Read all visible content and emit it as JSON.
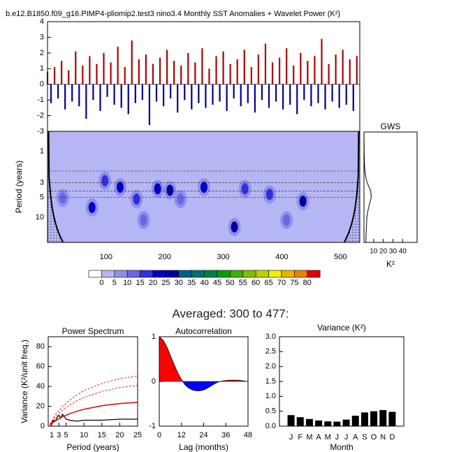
{
  "subheading": "Averaged: 300 to 477:",
  "chart_data": [
    {
      "type": "bar",
      "title": "b.e12.B1850.f09_g16.PIMP4-pliomip2.test3 nino3.4 Monthly SST Anomalies + Wavelet Power (K²)",
      "x": [
        0,
        6,
        12,
        18,
        24,
        30,
        36,
        42,
        48,
        54,
        60,
        66,
        72,
        78,
        84,
        90,
        96,
        102,
        108,
        114,
        120,
        126,
        132,
        138,
        144,
        150,
        156,
        162,
        168,
        174,
        180,
        186,
        192,
        198,
        204,
        210,
        216,
        222,
        228,
        234,
        240,
        246,
        252,
        258,
        264,
        270,
        276,
        282,
        288,
        294,
        300,
        306,
        312,
        318,
        324,
        330,
        336,
        342,
        348,
        354,
        360,
        366,
        372,
        378,
        384,
        390,
        396,
        402,
        408,
        414,
        420,
        426,
        432,
        438,
        444,
        450,
        456,
        462,
        468,
        474,
        480,
        486,
        492,
        498,
        504,
        510,
        516,
        522,
        528
      ],
      "values": [
        0.8,
        -1.2,
        1.1,
        -0.9,
        1.5,
        -1.6,
        0.9,
        -1.1,
        2.1,
        -1.4,
        1.2,
        -2.2,
        1.8,
        -1.0,
        1.3,
        -1.7,
        2.0,
        -0.8,
        1.4,
        -1.3,
        2.4,
        -1.5,
        1.1,
        -1.9,
        2.8,
        -1.2,
        1.6,
        -1.0,
        1.9,
        -2.6,
        1.3,
        -1.1,
        1.7,
        -1.4,
        2.2,
        -0.9,
        1.5,
        -1.8,
        1.2,
        -1.0,
        2.0,
        -1.6,
        1.4,
        -1.2,
        2.3,
        -1.5,
        1.0,
        -1.3,
        1.8,
        -1.1,
        2.1,
        -1.7,
        1.3,
        -0.9,
        1.6,
        -1.4,
        2.2,
        -1.2,
        1.1,
        -1.8,
        1.9,
        -1.0,
        2.6,
        -1.5,
        1.4,
        -1.1,
        1.7,
        -1.6,
        2.3,
        -1.3,
        1.2,
        -1.9,
        2.0,
        -1.0,
        1.5,
        -1.4,
        1.8,
        -1.2,
        2.9,
        -1.6,
        1.3,
        -1.1,
        1.9,
        -1.5,
        2.2,
        -1.3,
        1.6,
        -1.7,
        1.8
      ],
      "pos_color": "#b00000",
      "neg_color": "#00008b",
      "xlim": [
        0,
        533
      ],
      "ylim": [
        -3,
        4
      ],
      "yticks": [
        -3,
        -2,
        -1,
        0,
        1,
        2,
        3,
        4
      ]
    },
    {
      "type": "contour",
      "ylabel": "Period (years)",
      "xlim": [
        0,
        533
      ],
      "xticks": [
        100,
        200,
        300,
        400,
        500
      ],
      "ylim": [
        0.5,
        24
      ],
      "ylog": true,
      "yreversed": true,
      "yticks": [
        1,
        3,
        5,
        10
      ],
      "dashed_periods": [
        2,
        3,
        4,
        5
      ],
      "hotspots": [
        {
          "x": 26,
          "period": 5.1,
          "power": 10
        },
        {
          "x": 76,
          "period": 7.1,
          "power": 20
        },
        {
          "x": 98,
          "period": 2.8,
          "power": 15
        },
        {
          "x": 124,
          "period": 3.5,
          "power": 20
        },
        {
          "x": 152,
          "period": 5.3,
          "power": 15
        },
        {
          "x": 188,
          "period": 3.7,
          "power": 20
        },
        {
          "x": 209,
          "period": 3.9,
          "power": 25
        },
        {
          "x": 227,
          "period": 5.3,
          "power": 10
        },
        {
          "x": 267,
          "period": 3.5,
          "power": 20
        },
        {
          "x": 319,
          "period": 14,
          "power": 25
        },
        {
          "x": 337,
          "period": 3.7,
          "power": 15
        },
        {
          "x": 379,
          "period": 4.5,
          "power": 15
        },
        {
          "x": 436,
          "period": 5.7,
          "power": 25
        },
        {
          "x": 164,
          "period": 11,
          "power": 10
        },
        {
          "x": 408,
          "period": 11,
          "power": 10
        }
      ],
      "levels": [
        0,
        5,
        10,
        15,
        20,
        25,
        30,
        35,
        40,
        45,
        50,
        55,
        60,
        65,
        70,
        75,
        80
      ],
      "level_colors": [
        "#ffffff",
        "#b6b6f4",
        "#9090ec",
        "#6868e4",
        "#3030dc",
        "#0000c8",
        "#0000a0",
        "#006080",
        "#007070",
        "#008040",
        "#00a000",
        "#40b000",
        "#80c000",
        "#c0d000",
        "#f0f000",
        "#f0b000",
        "#f08000",
        "#e00000"
      ]
    },
    {
      "type": "line",
      "title": "GWS",
      "xlabel": "K²",
      "y": [
        0.5,
        1,
        1.5,
        2,
        2.5,
        3,
        3.5,
        4,
        5,
        6,
        8,
        10,
        14,
        20,
        24
      ],
      "values": [
        0,
        0.2,
        0.5,
        1,
        2,
        3.5,
        5.5,
        7,
        7.5,
        6,
        4,
        3,
        2.5,
        2,
        2
      ],
      "color": "#000000",
      "xlim": [
        0,
        55
      ],
      "xticks": [
        10,
        20,
        30,
        40
      ],
      "ylim": [
        0.5,
        24
      ],
      "ylog": true,
      "yreversed": true
    },
    {
      "type": "line",
      "title": "Power Spectrum",
      "xlabel": "Period (years)",
      "ylabel": "Variance (K²/unit freq.)",
      "x": [
        0.5,
        1,
        1.5,
        2,
        2.5,
        3,
        3.5,
        4,
        5,
        6,
        8,
        10,
        15,
        20,
        25
      ],
      "series": [
        {
          "color": "#000000",
          "values": [
            1,
            3,
            6,
            5,
            9,
            11,
            8,
            12,
            7,
            6,
            5,
            6,
            6,
            7,
            7
          ]
        },
        {
          "color": "#e00000",
          "values": [
            1,
            2.5,
            4,
            5.5,
            6.5,
            7.5,
            8.5,
            9.5,
            11,
            12.5,
            15,
            17,
            20.5,
            22.8,
            24
          ]
        },
        {
          "color": "#e00000",
          "dash": true,
          "values": [
            1.7,
            4.2,
            6.8,
            9.3,
            11,
            12.7,
            14.4,
            16,
            18.7,
            21,
            25.5,
            29,
            35,
            38.8,
            41
          ]
        },
        {
          "color": "#e00000",
          "dash": true,
          "values": [
            2.1,
            5.2,
            8.4,
            11.5,
            13.6,
            15.7,
            17.8,
            20,
            23,
            26,
            31.5,
            35.7,
            43,
            47.9,
            50.4
          ]
        }
      ],
      "xlim": [
        0,
        25
      ],
      "xticks": [
        1,
        3,
        5,
        10,
        15,
        20,
        25
      ],
      "ylim": [
        0,
        90
      ],
      "yticks": [
        0,
        20,
        40,
        60,
        80
      ]
    },
    {
      "type": "area",
      "title": "Autocorrelation",
      "xlabel": "Lag (months)",
      "x": [
        0,
        2,
        4,
        6,
        8,
        10,
        12,
        14,
        16,
        18,
        20,
        22,
        24,
        26,
        28,
        30,
        32,
        34,
        36,
        38,
        40,
        42,
        44,
        46,
        48
      ],
      "values": [
        1,
        0.93,
        0.78,
        0.58,
        0.38,
        0.19,
        0.04,
        -0.08,
        -0.15,
        -0.19,
        -0.21,
        -0.21,
        -0.19,
        -0.15,
        -0.1,
        -0.05,
        -0.01,
        0.01,
        0.02,
        0.03,
        0.03,
        0.03,
        0.02,
        0.01,
        0
      ],
      "pos_color": "#ff0000",
      "neg_color": "#0000ff",
      "xlim": [
        0,
        48
      ],
      "xticks": [
        0,
        12,
        24,
        36,
        48
      ],
      "ylim": [
        -1,
        1
      ],
      "yticks": [
        -1,
        0,
        1
      ]
    },
    {
      "type": "bar",
      "title": "Variance (K²)",
      "xlabel": "Month",
      "categories": [
        "J",
        "F",
        "M",
        "A",
        "M",
        "J",
        "J",
        "A",
        "S",
        "O",
        "N",
        "D"
      ],
      "values": [
        0.37,
        0.3,
        0.24,
        0.19,
        0.16,
        0.15,
        0.22,
        0.35,
        0.46,
        0.5,
        0.54,
        0.48
      ],
      "color": "#000000",
      "ylim": [
        0,
        3
      ],
      "yticks": [
        {
          "value": 0,
          "label": "0.0"
        },
        0.5,
        {
          "value": 1,
          "label": "1.0"
        },
        1.5,
        {
          "value": 2,
          "label": "2.0"
        },
        2.5,
        {
          "value": 3,
          "label": "3.0"
        }
      ]
    }
  ]
}
